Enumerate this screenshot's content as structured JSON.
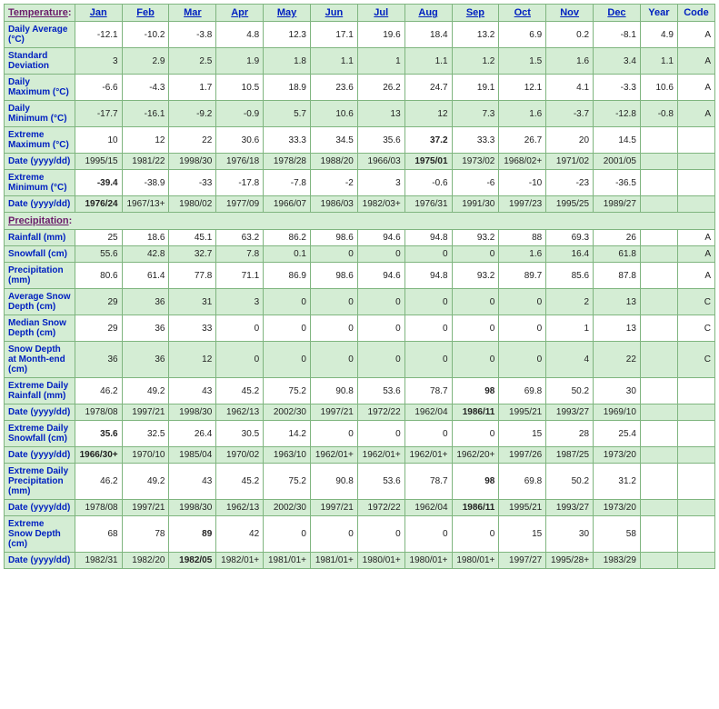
{
  "colors": {
    "header_bg": "#d4edd4",
    "header_fg": "#0020c0",
    "section_fg": "#6a1a6a",
    "border": "#7fb57f",
    "row_odd_bg": "#ffffff",
    "row_even_bg": "#d4edd4"
  },
  "months": [
    "Jan",
    "Feb",
    "Mar",
    "Apr",
    "May",
    "Jun",
    "Jul",
    "Aug",
    "Sep",
    "Oct",
    "Nov",
    "Dec"
  ],
  "extra_headers": [
    "Year",
    "Code"
  ],
  "section1": "Temperature:",
  "section2": "Precipitation:",
  "rows_temp": [
    {
      "label": "Daily Average (°C)",
      "parity": "odd",
      "vals": [
        "-12.1",
        "-10.2",
        "-3.8",
        "4.8",
        "12.3",
        "17.1",
        "19.6",
        "18.4",
        "13.2",
        "6.9",
        "0.2",
        "-8.1",
        "4.9",
        "A"
      ],
      "bold": []
    },
    {
      "label": "Standard Deviation",
      "parity": "even",
      "vals": [
        "3",
        "2.9",
        "2.5",
        "1.9",
        "1.8",
        "1.1",
        "1",
        "1.1",
        "1.2",
        "1.5",
        "1.6",
        "3.4",
        "1.1",
        "A"
      ],
      "bold": []
    },
    {
      "label": "Daily Maximum (°C)",
      "parity": "odd",
      "vals": [
        "-6.6",
        "-4.3",
        "1.7",
        "10.5",
        "18.9",
        "23.6",
        "26.2",
        "24.7",
        "19.1",
        "12.1",
        "4.1",
        "-3.3",
        "10.6",
        "A"
      ],
      "bold": []
    },
    {
      "label": "Daily Minimum (°C)",
      "parity": "even",
      "vals": [
        "-17.7",
        "-16.1",
        "-9.2",
        "-0.9",
        "5.7",
        "10.6",
        "13",
        "12",
        "7.3",
        "1.6",
        "-3.7",
        "-12.8",
        "-0.8",
        "A"
      ],
      "bold": []
    },
    {
      "label": "Extreme Maximum (°C)",
      "parity": "odd",
      "vals": [
        "10",
        "12",
        "22",
        "30.6",
        "33.3",
        "34.5",
        "35.6",
        "37.2",
        "33.3",
        "26.7",
        "20",
        "14.5",
        "",
        ""
      ],
      "bold": [
        7
      ]
    },
    {
      "label": "Date (yyyy/dd)",
      "parity": "even",
      "vals": [
        "1995/15",
        "1981/22",
        "1998/30",
        "1976/18",
        "1978/28",
        "1988/20",
        "1966/03",
        "1975/01",
        "1973/02",
        "1968/02+",
        "1971/02",
        "2001/05",
        "",
        ""
      ],
      "bold": [
        7
      ]
    },
    {
      "label": "Extreme Minimum (°C)",
      "parity": "odd",
      "vals": [
        "-39.4",
        "-38.9",
        "-33",
        "-17.8",
        "-7.8",
        "-2",
        "3",
        "-0.6",
        "-6",
        "-10",
        "-23",
        "-36.5",
        "",
        ""
      ],
      "bold": [
        0
      ]
    },
    {
      "label": "Date (yyyy/dd)",
      "parity": "even",
      "vals": [
        "1976/24",
        "1967/13+",
        "1980/02",
        "1977/09",
        "1966/07",
        "1986/03",
        "1982/03+",
        "1976/31",
        "1991/30",
        "1997/23",
        "1995/25",
        "1989/27",
        "",
        ""
      ],
      "bold": [
        0
      ]
    }
  ],
  "rows_precip": [
    {
      "label": "Rainfall (mm)",
      "parity": "odd",
      "vals": [
        "25",
        "18.6",
        "45.1",
        "63.2",
        "86.2",
        "98.6",
        "94.6",
        "94.8",
        "93.2",
        "88",
        "69.3",
        "26",
        "",
        "A"
      ],
      "bold": []
    },
    {
      "label": "Snowfall (cm)",
      "parity": "even",
      "vals": [
        "55.6",
        "42.8",
        "32.7",
        "7.8",
        "0.1",
        "0",
        "0",
        "0",
        "0",
        "1.6",
        "16.4",
        "61.8",
        "",
        "A"
      ],
      "bold": []
    },
    {
      "label": "Precipitation (mm)",
      "parity": "odd",
      "vals": [
        "80.6",
        "61.4",
        "77.8",
        "71.1",
        "86.9",
        "98.6",
        "94.6",
        "94.8",
        "93.2",
        "89.7",
        "85.6",
        "87.8",
        "",
        "A"
      ],
      "bold": []
    },
    {
      "label": "Average Snow Depth (cm)",
      "parity": "even",
      "vals": [
        "29",
        "36",
        "31",
        "3",
        "0",
        "0",
        "0",
        "0",
        "0",
        "0",
        "2",
        "13",
        "",
        "C"
      ],
      "bold": []
    },
    {
      "label": "Median Snow Depth (cm)",
      "parity": "odd",
      "vals": [
        "29",
        "36",
        "33",
        "0",
        "0",
        "0",
        "0",
        "0",
        "0",
        "0",
        "1",
        "13",
        "",
        "C"
      ],
      "bold": []
    },
    {
      "label": "Snow Depth at Month-end (cm)",
      "parity": "even",
      "vals": [
        "36",
        "36",
        "12",
        "0",
        "0",
        "0",
        "0",
        "0",
        "0",
        "0",
        "4",
        "22",
        "",
        "C"
      ],
      "bold": []
    },
    {
      "label": "Extreme Daily Rainfall (mm)",
      "parity": "odd",
      "vals": [
        "46.2",
        "49.2",
        "43",
        "45.2",
        "75.2",
        "90.8",
        "53.6",
        "78.7",
        "98",
        "69.8",
        "50.2",
        "30",
        "",
        ""
      ],
      "bold": [
        8
      ]
    },
    {
      "label": "Date (yyyy/dd)",
      "parity": "even",
      "vals": [
        "1978/08",
        "1997/21",
        "1998/30",
        "1962/13",
        "2002/30",
        "1997/21",
        "1972/22",
        "1962/04",
        "1986/11",
        "1995/21",
        "1993/27",
        "1969/10",
        "",
        ""
      ],
      "bold": [
        8
      ]
    },
    {
      "label": "Extreme Daily Snowfall (cm)",
      "parity": "odd",
      "vals": [
        "35.6",
        "32.5",
        "26.4",
        "30.5",
        "14.2",
        "0",
        "0",
        "0",
        "0",
        "15",
        "28",
        "25.4",
        "",
        ""
      ],
      "bold": [
        0
      ]
    },
    {
      "label": "Date (yyyy/dd)",
      "parity": "even",
      "vals": [
        "1966/30+",
        "1970/10",
        "1985/04",
        "1970/02",
        "1963/10",
        "1962/01+",
        "1962/01+",
        "1962/01+",
        "1962/20+",
        "1997/26",
        "1987/25",
        "1973/20",
        "",
        ""
      ],
      "bold": [
        0
      ]
    },
    {
      "label": "Extreme Daily Precipitation (mm)",
      "parity": "odd",
      "vals": [
        "46.2",
        "49.2",
        "43",
        "45.2",
        "75.2",
        "90.8",
        "53.6",
        "78.7",
        "98",
        "69.8",
        "50.2",
        "31.2",
        "",
        ""
      ],
      "bold": [
        8
      ]
    },
    {
      "label": "Date (yyyy/dd)",
      "parity": "even",
      "vals": [
        "1978/08",
        "1997/21",
        "1998/30",
        "1962/13",
        "2002/30",
        "1997/21",
        "1972/22",
        "1962/04",
        "1986/11",
        "1995/21",
        "1993/27",
        "1973/20",
        "",
        ""
      ],
      "bold": [
        8
      ]
    },
    {
      "label": "Extreme Snow Depth (cm)",
      "parity": "odd",
      "vals": [
        "68",
        "78",
        "89",
        "42",
        "0",
        "0",
        "0",
        "0",
        "0",
        "15",
        "30",
        "58",
        "",
        ""
      ],
      "bold": [
        2
      ]
    },
    {
      "label": "Date (yyyy/dd)",
      "parity": "even",
      "vals": [
        "1982/31",
        "1982/20",
        "1982/05",
        "1982/01+",
        "1981/01+",
        "1981/01+",
        "1980/01+",
        "1980/01+",
        "1980/01+",
        "1997/27",
        "1995/28+",
        "1983/29",
        "",
        ""
      ],
      "bold": [
        2
      ]
    }
  ]
}
